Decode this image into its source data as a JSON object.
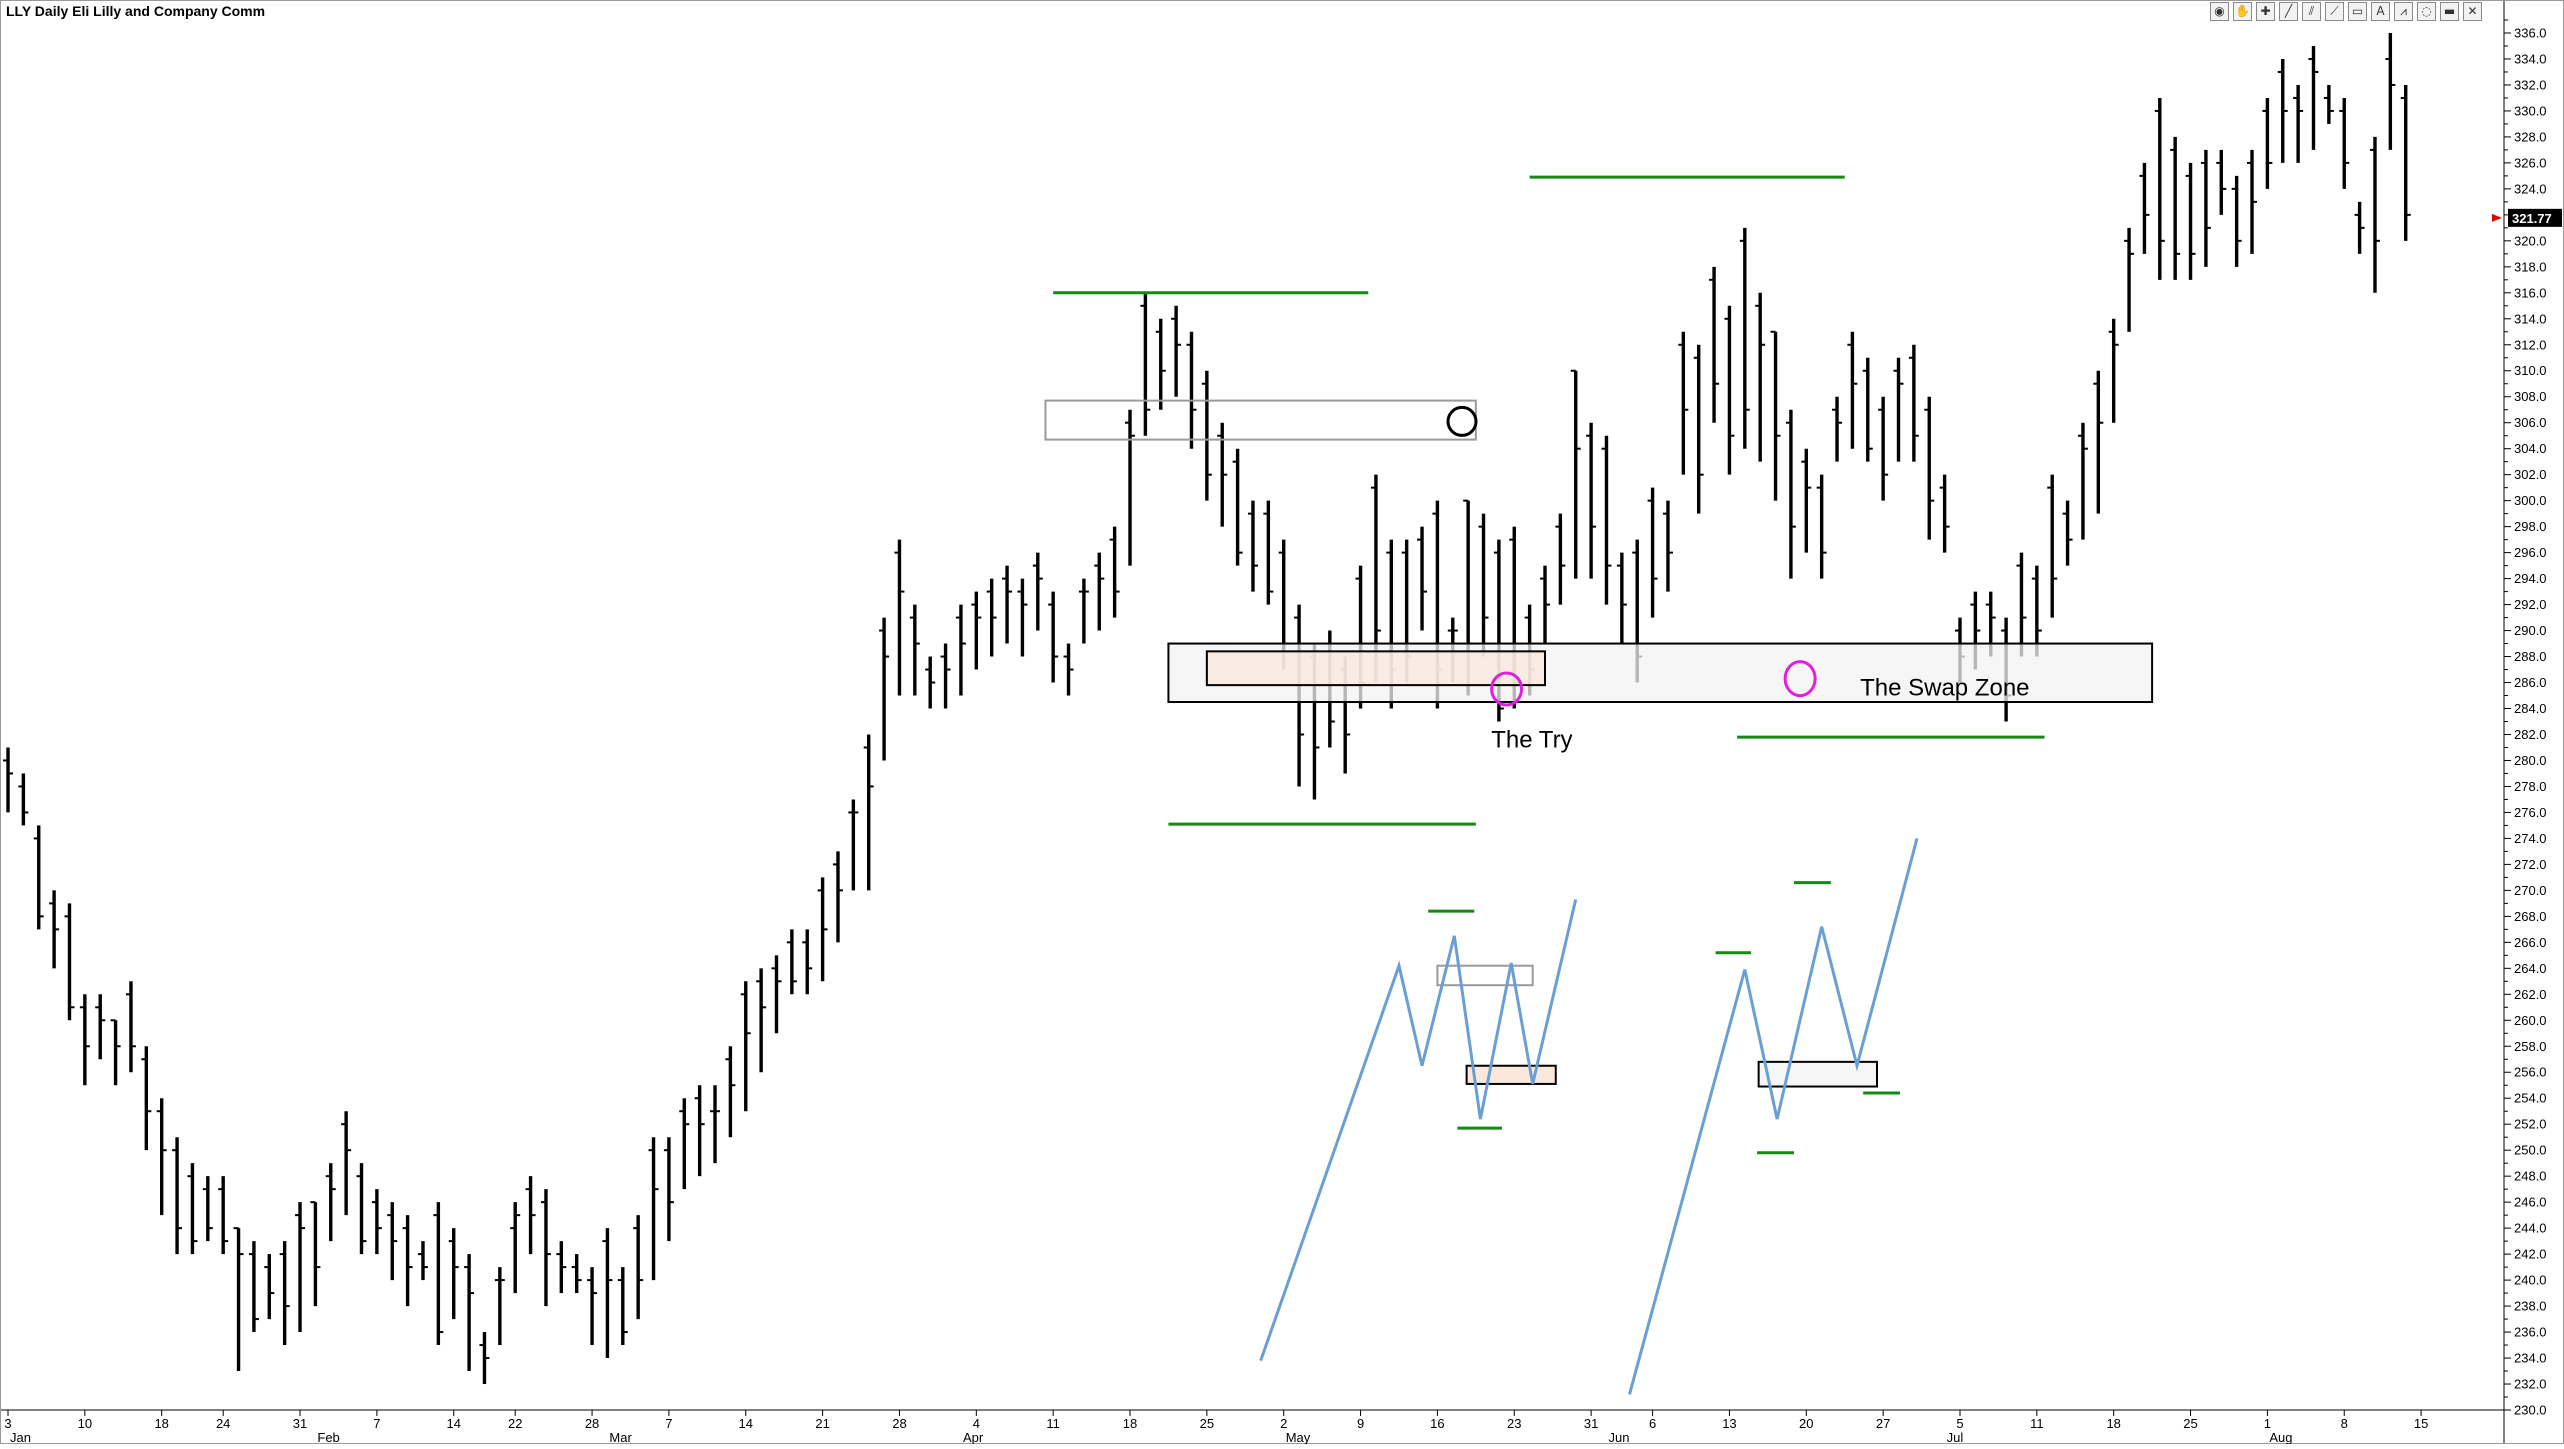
{
  "window": {
    "title": "LLY Daily Eli Lilly and Company Comm",
    "toolbar_icons": [
      "globe-icon",
      "hand-icon",
      "crosshair-icon",
      "line-icon",
      "channel-icon",
      "fan-icon",
      "rectangle-icon",
      "text-icon",
      "zigzag-icon",
      "cycle-icon",
      "highlight-icon",
      "close-icon"
    ],
    "toolbar_glyphs": [
      "◉",
      "✋",
      "✚",
      "╱",
      "⫽",
      "⟋",
      "▭",
      "A",
      "⩘",
      "◌",
      "▬",
      "✕"
    ]
  },
  "chart_data": {
    "type": "ohlc",
    "symbol": "LLY",
    "timeframe": "Daily",
    "title": "LLY Daily Eli Lilly and Company Comm",
    "ylim": [
      230,
      337
    ],
    "ytick_step": 2,
    "last_price": "321.77",
    "grid": false,
    "x_day_labels": [
      {
        "d": 0,
        "t": "3"
      },
      {
        "d": 5,
        "t": "10"
      },
      {
        "d": 10,
        "t": "18"
      },
      {
        "d": 14,
        "t": "24"
      },
      {
        "d": 19,
        "t": "31"
      },
      {
        "d": 24,
        "t": "7"
      },
      {
        "d": 29,
        "t": "14"
      },
      {
        "d": 33,
        "t": "22"
      },
      {
        "d": 38,
        "t": "28"
      },
      {
        "d": 43,
        "t": "7"
      },
      {
        "d": 48,
        "t": "14"
      },
      {
        "d": 53,
        "t": "21"
      },
      {
        "d": 58,
        "t": "28"
      },
      {
        "d": 63,
        "t": "4"
      },
      {
        "d": 68,
        "t": "11"
      },
      {
        "d": 73,
        "t": "18"
      },
      {
        "d": 78,
        "t": "25"
      },
      {
        "d": 83,
        "t": "2"
      },
      {
        "d": 88,
        "t": "9"
      },
      {
        "d": 93,
        "t": "16"
      },
      {
        "d": 98,
        "t": "23"
      },
      {
        "d": 103,
        "t": "31"
      },
      {
        "d": 107,
        "t": "6"
      },
      {
        "d": 112,
        "t": "13"
      },
      {
        "d": 117,
        "t": "20"
      },
      {
        "d": 122,
        "t": "27"
      },
      {
        "d": 127,
        "t": "5"
      },
      {
        "d": 132,
        "t": "11"
      },
      {
        "d": 137,
        "t": "18"
      },
      {
        "d": 142,
        "t": "25"
      },
      {
        "d": 147,
        "t": "1"
      },
      {
        "d": 152,
        "t": "8"
      },
      {
        "d": 157,
        "t": "15"
      }
    ],
    "x_month_labels": [
      {
        "d": 0,
        "t": "Jan"
      },
      {
        "d": 20,
        "t": "Feb"
      },
      {
        "d": 39,
        "t": "Mar"
      },
      {
        "d": 62,
        "t": "Apr"
      },
      {
        "d": 83,
        "t": "May"
      },
      {
        "d": 104,
        "t": "Jun"
      },
      {
        "d": 126,
        "t": "Jul"
      },
      {
        "d": 147,
        "t": "Aug"
      }
    ],
    "bars": [
      [
        280,
        281,
        276,
        279
      ],
      [
        278,
        279,
        275,
        276
      ],
      [
        274,
        275,
        267,
        268
      ],
      [
        269,
        270,
        264,
        267
      ],
      [
        268,
        269,
        260,
        261
      ],
      [
        261,
        262,
        255,
        258
      ],
      [
        261,
        262,
        257,
        260
      ],
      [
        260,
        260,
        255,
        258
      ],
      [
        262,
        263,
        256,
        258
      ],
      [
        257,
        258,
        250,
        253
      ],
      [
        253,
        254,
        245,
        250
      ],
      [
        250,
        251,
        242,
        244
      ],
      [
        248,
        249,
        242,
        243
      ],
      [
        247,
        248,
        243,
        244
      ],
      [
        247,
        248,
        242,
        243
      ],
      [
        244,
        244,
        233,
        242
      ],
      [
        242,
        243,
        236,
        237
      ],
      [
        241,
        242,
        237,
        239
      ],
      [
        242,
        243,
        235,
        238
      ],
      [
        245,
        246,
        236,
        244
      ],
      [
        246,
        246,
        238,
        241
      ],
      [
        248,
        249,
        243,
        247
      ],
      [
        252,
        253,
        245,
        250
      ],
      [
        248,
        249,
        242,
        243
      ],
      [
        246,
        247,
        242,
        244
      ],
      [
        245,
        246,
        240,
        243
      ],
      [
        244,
        245,
        238,
        241
      ],
      [
        242,
        243,
        240,
        241
      ],
      [
        245,
        246,
        235,
        236
      ],
      [
        243,
        244,
        237,
        241
      ],
      [
        241,
        242,
        233,
        239
      ],
      [
        235,
        236,
        232,
        234
      ],
      [
        240,
        241,
        235,
        240
      ],
      [
        244,
        246,
        239,
        245
      ],
      [
        247,
        248,
        242,
        245
      ],
      [
        246,
        247,
        238,
        242
      ],
      [
        242,
        243,
        239,
        241
      ],
      [
        241,
        242,
        239,
        240
      ],
      [
        240,
        241,
        235,
        239
      ],
      [
        243,
        244,
        234,
        240
      ],
      [
        240,
        241,
        235,
        236
      ],
      [
        244,
        245,
        237,
        240
      ],
      [
        250,
        251,
        240,
        247
      ],
      [
        250,
        251,
        243,
        246
      ],
      [
        253,
        254,
        247,
        252
      ],
      [
        254,
        255,
        248,
        252
      ],
      [
        253,
        255,
        249,
        253
      ],
      [
        257,
        258,
        251,
        255
      ],
      [
        262,
        263,
        253,
        259
      ],
      [
        263,
        264,
        256,
        261
      ],
      [
        264,
        265,
        259,
        263
      ],
      [
        266,
        267,
        262,
        263
      ],
      [
        266,
        267,
        262,
        264
      ],
      [
        270,
        271,
        263,
        267
      ],
      [
        272,
        273,
        266,
        270
      ],
      [
        276,
        277,
        270,
        276
      ],
      [
        281,
        282,
        270,
        278
      ],
      [
        290,
        291,
        280,
        288
      ],
      [
        296,
        297,
        285,
        293
      ],
      [
        291,
        292,
        285,
        289
      ],
      [
        287,
        288,
        284,
        286
      ],
      [
        288,
        289,
        284,
        287
      ],
      [
        291,
        292,
        285,
        289
      ],
      [
        292,
        293,
        287,
        291
      ],
      [
        293,
        294,
        288,
        291
      ],
      [
        294,
        295,
        289,
        293
      ],
      [
        293,
        294,
        288,
        292
      ],
      [
        295,
        296,
        290,
        294
      ],
      [
        292,
        293,
        286,
        288
      ],
      [
        288,
        289,
        285,
        287
      ],
      [
        293,
        294,
        289,
        293
      ],
      [
        295,
        296,
        290,
        294
      ],
      [
        297,
        298,
        291,
        293
      ],
      [
        306,
        307,
        295,
        305
      ],
      [
        315,
        316,
        305,
        307
      ],
      [
        313,
        314,
        307,
        310
      ],
      [
        314,
        315,
        308,
        312
      ],
      [
        312,
        313,
        304,
        307
      ],
      [
        309,
        310,
        300,
        302
      ],
      [
        305,
        306,
        298,
        302
      ],
      [
        303,
        304,
        295,
        296
      ],
      [
        299,
        300,
        293,
        295
      ],
      [
        299,
        300,
        292,
        293
      ],
      [
        296,
        297,
        287,
        289
      ],
      [
        291,
        292,
        278,
        282
      ],
      [
        288,
        289,
        277,
        281
      ],
      [
        289,
        290,
        281,
        283
      ],
      [
        287,
        288,
        279,
        282
      ],
      [
        294,
        295,
        284,
        286
      ],
      [
        301,
        302,
        286,
        290
      ],
      [
        296,
        297,
        284,
        287
      ],
      [
        296,
        297,
        286,
        288
      ],
      [
        297,
        298,
        290,
        293
      ],
      [
        299,
        300,
        284,
        287
      ],
      [
        290,
        291,
        286,
        290
      ],
      [
        300,
        300,
        285,
        289
      ],
      [
        298,
        299,
        288,
        291
      ],
      [
        296,
        297,
        283,
        284
      ],
      [
        297,
        298,
        284,
        286
      ],
      [
        291,
        292,
        285,
        287
      ],
      [
        294,
        295,
        289,
        292
      ],
      [
        298,
        299,
        292,
        295
      ],
      [
        310,
        310,
        294,
        304
      ],
      [
        305,
        306,
        294,
        298
      ],
      [
        304,
        305,
        292,
        295
      ],
      [
        295,
        296,
        289,
        292
      ],
      [
        296,
        297,
        286,
        288
      ],
      [
        300,
        301,
        291,
        294
      ],
      [
        299,
        300,
        293,
        296
      ],
      [
        312,
        313,
        302,
        307
      ],
      [
        311,
        312,
        299,
        302
      ],
      [
        317,
        318,
        306,
        309
      ],
      [
        314,
        315,
        302,
        305
      ],
      [
        320,
        321,
        304,
        307
      ],
      [
        315,
        316,
        303,
        312
      ],
      [
        313,
        313,
        300,
        305
      ],
      [
        306,
        307,
        294,
        298
      ],
      [
        303,
        304,
        296,
        301
      ],
      [
        301,
        302,
        294,
        296
      ],
      [
        307,
        308,
        303,
        306
      ],
      [
        312,
        313,
        304,
        309
      ],
      [
        310,
        311,
        303,
        304
      ],
      [
        307,
        308,
        300,
        302
      ],
      [
        310,
        311,
        303,
        309
      ],
      [
        311,
        312,
        303,
        305
      ],
      [
        307,
        308,
        297,
        300
      ],
      [
        301,
        302,
        296,
        298
      ],
      [
        290,
        291,
        286,
        288
      ],
      [
        292,
        293,
        287,
        290
      ],
      [
        292,
        293,
        288,
        291
      ],
      [
        290,
        291,
        283,
        285
      ],
      [
        295,
        296,
        288,
        291
      ],
      [
        294,
        295,
        288,
        290
      ],
      [
        301,
        302,
        291,
        294
      ],
      [
        299,
        300,
        295,
        297
      ],
      [
        305,
        306,
        297,
        304
      ],
      [
        309,
        310,
        299,
        306
      ],
      [
        313,
        314,
        306,
        312
      ],
      [
        320,
        321,
        313,
        319
      ],
      [
        325,
        326,
        319,
        322
      ],
      [
        330,
        331,
        317,
        320
      ],
      [
        327,
        328,
        317,
        319
      ],
      [
        325,
        326,
        317,
        319
      ],
      [
        326,
        327,
        318,
        321
      ],
      [
        326,
        327,
        322,
        324
      ],
      [
        324,
        325,
        318,
        320
      ],
      [
        326,
        327,
        319,
        323
      ],
      [
        330,
        331,
        324,
        326
      ],
      [
        333,
        334,
        326,
        330
      ],
      [
        331,
        332,
        326,
        330
      ],
      [
        334,
        335,
        327,
        333
      ],
      [
        331,
        332,
        329,
        330
      ],
      [
        330,
        331,
        324,
        326
      ],
      [
        322,
        323,
        319,
        321
      ],
      [
        327,
        328,
        316,
        320
      ],
      [
        334,
        336,
        327,
        332
      ],
      [
        331,
        332,
        320,
        322
      ]
    ],
    "annotations": {
      "labels": [
        {
          "id": "the-try",
          "text": "The Try",
          "d": 96.5,
          "y": 281
        },
        {
          "id": "the-swap-zone",
          "text": "The Swap Zone",
          "d": 120.5,
          "y": 285
        }
      ],
      "rectangles": [
        {
          "id": "swap-zone-box",
          "d1": 75.5,
          "d2": 139.5,
          "y_top": 289,
          "y_bottom": 284.5,
          "fill": "#f3f3f3",
          "stroke": "#000000"
        },
        {
          "id": "try-box",
          "d1": 78,
          "d2": 100,
          "y_top": 288.4,
          "y_bottom": 285.8,
          "fill": "#fbe8dc",
          "stroke": "#000000"
        },
        {
          "id": "resistance-box",
          "d1": 67.5,
          "d2": 95.5,
          "y_top": 307.7,
          "y_bottom": 304.7,
          "fill": "none",
          "stroke": "#9a9a9a"
        }
      ],
      "circles": [
        {
          "id": "black-circle",
          "d": 94.6,
          "y": 306.1,
          "rx": 14,
          "ry": 14,
          "color": "#000000"
        },
        {
          "id": "magenta-circle-try",
          "d": 97.5,
          "y": 285.5,
          "rx": 15,
          "ry": 16,
          "color": "#e020e0"
        },
        {
          "id": "magenta-circle-swap",
          "d": 116.6,
          "y": 286.3,
          "rx": 15,
          "ry": 17,
          "color": "#e020e0"
        }
      ],
      "green_lines": [
        {
          "id": "resistance-line-april",
          "d1": 68,
          "d2": 88.5,
          "y": 316
        },
        {
          "id": "support-line-april",
          "d1": 75.5,
          "d2": 95.5,
          "y": 275.1
        },
        {
          "id": "resistance-line-june",
          "d1": 99,
          "d2": 119.5,
          "y": 324.9
        },
        {
          "id": "support-line-june",
          "d1": 112.5,
          "d2": 132.5,
          "y": 281.8
        }
      ]
    },
    "schematics": [
      {
        "id": "schematic-1",
        "path": [
          [
            81.5,
            233.8
          ],
          [
            90.5,
            264.2
          ],
          [
            92,
            256.5
          ],
          [
            94.1,
            266.5
          ],
          [
            95.8,
            252.4
          ],
          [
            97.8,
            264.4
          ],
          [
            99.2,
            255.1
          ],
          [
            102,
            269.3
          ]
        ],
        "box_resistance": {
          "d1": 93,
          "d2": 99.2,
          "y_top": 264.2,
          "y_bottom": 262.7
        },
        "box_support": {
          "d1": 94.9,
          "d2": 100.7,
          "y_top": 256.5,
          "y_bottom": 255.1
        },
        "green_lines": [
          {
            "d1": 92.4,
            "d2": 95.4,
            "y": 268.4
          },
          {
            "d1": 94.3,
            "d2": 97.2,
            "y": 251.7
          }
        ]
      },
      {
        "id": "schematic-2",
        "path": [
          [
            105.5,
            231.2
          ],
          [
            113,
            263.9
          ],
          [
            115.1,
            252.4
          ],
          [
            118,
            267.2
          ],
          [
            120.3,
            256.5
          ],
          [
            124.2,
            274
          ]
        ],
        "box_resistance": null,
        "box_support": {
          "d1": 113.9,
          "d2": 121.6,
          "y_top": 256.8,
          "y_bottom": 254.9
        },
        "green_lines": [
          {
            "d1": 111.1,
            "d2": 113.4,
            "y": 265.2
          },
          {
            "d1": 116.2,
            "d2": 118.6,
            "y": 270.6
          },
          {
            "d1": 113.8,
            "d2": 116.2,
            "y": 249.8
          },
          {
            "d1": 120.7,
            "d2": 123.1,
            "y": 254.4
          }
        ]
      }
    ]
  }
}
